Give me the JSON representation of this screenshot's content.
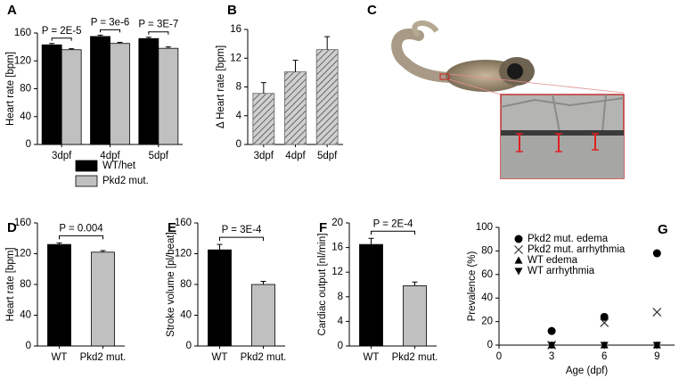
{
  "chart_data": [
    {
      "panel": "A",
      "type": "bar",
      "ylabel": "Heart rate [bpm]",
      "categories": [
        "3dpf",
        "4dpf",
        "5dpf"
      ],
      "series": [
        {
          "name": "WT/het",
          "color": "#000000",
          "values": [
            143,
            155,
            152
          ],
          "errors": [
            2,
            2,
            2
          ]
        },
        {
          "name": "Pkd2 mut.",
          "color": "#c0c0c0",
          "values": [
            136,
            145,
            138
          ],
          "errors": [
            1.5,
            1.5,
            2
          ]
        }
      ],
      "annotations": [
        "P = 2E-5",
        "P = 3e-6",
        "P = 3E-7"
      ],
      "ylim": [
        0,
        160
      ],
      "yticks": [
        0,
        40,
        80,
        120,
        160
      ],
      "legend": "below"
    },
    {
      "panel": "B",
      "type": "bar",
      "ylabel": "Δ Heart rate [bpm]",
      "categories": [
        "3dpf",
        "4dpf",
        "5dpf"
      ],
      "values": [
        7.1,
        10.1,
        13.2
      ],
      "errors": [
        1.5,
        1.6,
        1.8
      ],
      "colors": [
        "#888888",
        "#888888",
        "#888888"
      ],
      "hatch": true,
      "ylim": [
        0,
        16
      ],
      "yticks": [
        0,
        4,
        8,
        12,
        16
      ]
    },
    {
      "panel": "C",
      "type": "image"
    },
    {
      "panel": "D",
      "type": "bar",
      "ylabel": "Heart rate [bpm]",
      "categories": [
        "WT",
        "Pkd2 mut."
      ],
      "values": [
        132,
        122
      ],
      "errors": [
        2,
        2
      ],
      "colors": [
        "#000000",
        "#c0c0c0"
      ],
      "annotation": "P = 0.004",
      "ylim": [
        0,
        160
      ],
      "yticks": [
        0,
        40,
        80,
        120,
        160
      ]
    },
    {
      "panel": "E",
      "type": "bar",
      "ylabel": "Stroke volume [pl/beat]",
      "categories": [
        "WT",
        "Pkd2 mut."
      ],
      "values": [
        125,
        80
      ],
      "errors": [
        7,
        4
      ],
      "colors": [
        "#000000",
        "#c0c0c0"
      ],
      "annotation": "P = 3E-4",
      "ylim": [
        0,
        160
      ],
      "yticks": [
        0,
        40,
        80,
        120,
        160
      ]
    },
    {
      "panel": "F",
      "type": "bar",
      "ylabel": "Cardiac output [nl/min]",
      "categories": [
        "WT",
        "Pkd2 mut."
      ],
      "values": [
        16.5,
        9.8
      ],
      "errors": [
        1,
        0.6
      ],
      "colors": [
        "#000000",
        "#c0c0c0"
      ],
      "annotation": "P = 2E-4",
      "ylim": [
        0,
        20
      ],
      "yticks": [
        0,
        4,
        8,
        12,
        16,
        20
      ]
    },
    {
      "panel": "G",
      "type": "scatter",
      "xlabel": "Age (dpf)",
      "ylabel": "Prevalence (%)",
      "x": [
        3,
        6,
        9
      ],
      "series": [
        {
          "name": "Pkd2 mut. edema",
          "marker": "circle",
          "color": "#000000",
          "values": [
            12,
            24,
            78
          ]
        },
        {
          "name": "Pkd2 mut. arrhythmia",
          "marker": "x",
          "color": "#333333",
          "values": [
            0,
            19,
            28
          ]
        },
        {
          "name": "WT edema",
          "marker": "triangle",
          "color": "#000000",
          "values": [
            0,
            0,
            0
          ]
        },
        {
          "name": "WT arrhythmia",
          "marker": "triangle-down",
          "color": "#000000",
          "values": [
            0,
            0,
            0
          ]
        }
      ],
      "xlim": [
        0,
        10
      ],
      "xticks": [
        0,
        3,
        6,
        9
      ],
      "ylim": [
        0,
        100
      ],
      "yticks": [
        0,
        20,
        40,
        60,
        80,
        100
      ]
    }
  ]
}
